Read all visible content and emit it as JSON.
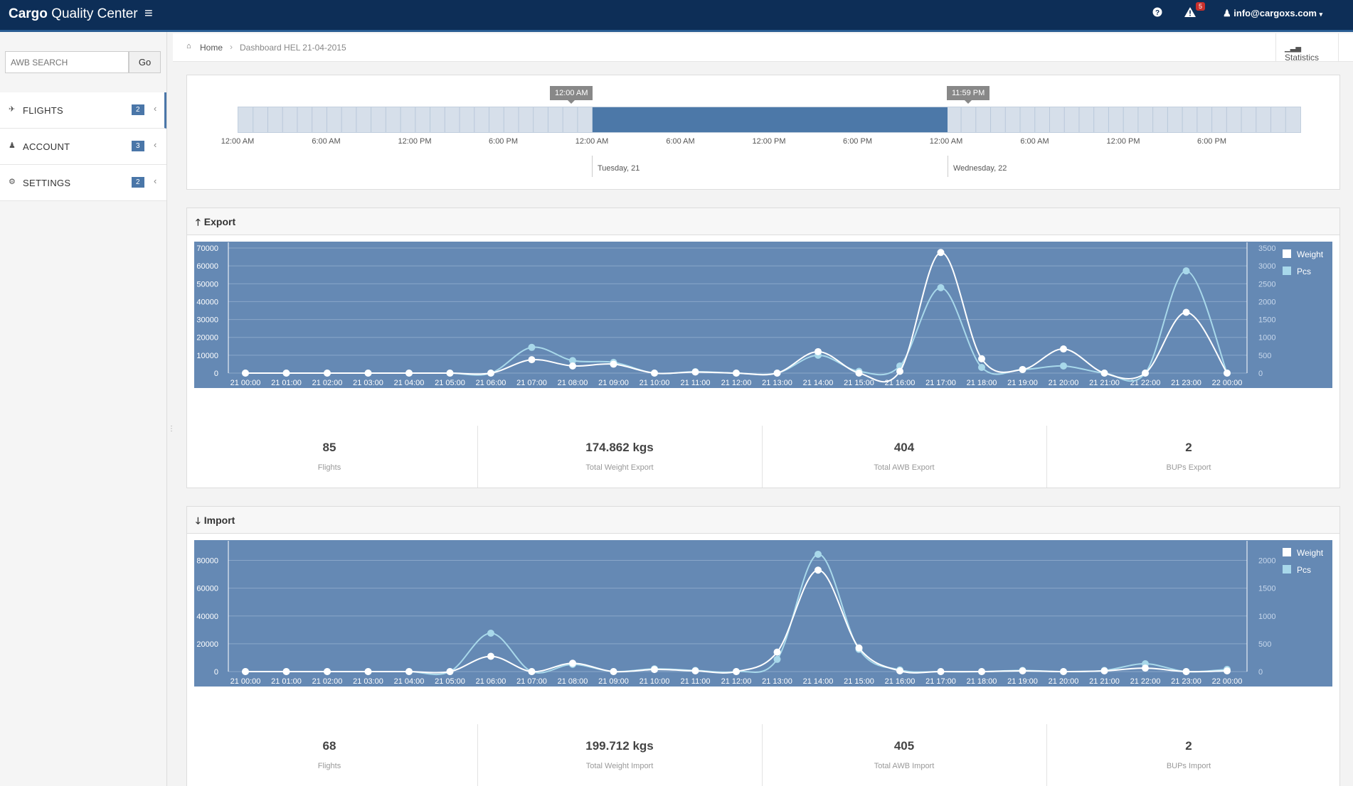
{
  "topbar": {
    "brand_bold": "Cargo",
    "brand_rest": "Quality Center",
    "menu_icon": "hamburger-icon",
    "help_icon": "question-circle-icon",
    "alert_icon": "warning-triangle-icon",
    "alert_count": "5",
    "user_icon": "user-icon",
    "user_email": "info@cargoxs.com"
  },
  "sidebar": {
    "search_placeholder": "AWB SEARCH",
    "search_button": "Go",
    "items": [
      {
        "label": "FLIGHTS",
        "count": "2",
        "icon": "plane-icon"
      },
      {
        "label": "ACCOUNT",
        "count": "3",
        "icon": "user-icon"
      },
      {
        "label": "SETTINGS",
        "count": "2",
        "icon": "gear-icon"
      }
    ]
  },
  "breadcrumb": {
    "home": "Home",
    "current": "Dashboard HEL 21-04-2015",
    "stats_button": "Statistics"
  },
  "timeline": {
    "start_label": "12:00 AM",
    "end_label": "11:59 PM",
    "ticks": [
      "12:00 AM",
      "6:00 AM",
      "12:00 PM",
      "6:00 PM",
      "12:00 AM",
      "6:00 AM",
      "12:00 PM",
      "6:00 PM",
      "12:00 AM",
      "6:00 AM",
      "12:00 PM",
      "6:00 PM"
    ],
    "day_1": "Tuesday, 21",
    "day_2": "Wednesday, 22"
  },
  "export": {
    "title": "Export",
    "stats": [
      {
        "value": "85",
        "label": "Flights"
      },
      {
        "value": "174.862 kgs",
        "label": "Total Weight Export"
      },
      {
        "value": "404",
        "label": "Total AWB Export"
      },
      {
        "value": "2",
        "label": "BUPs Export"
      }
    ]
  },
  "import": {
    "title": "Import",
    "stats": [
      {
        "value": "68",
        "label": "Flights"
      },
      {
        "value": "199.712 kgs",
        "label": "Total Weight Import"
      },
      {
        "value": "405",
        "label": "Total AWB Import"
      },
      {
        "value": "2",
        "label": "BUPs Import"
      }
    ]
  },
  "colors": {
    "chart_bg": "#6589b4",
    "weight": "#ffffff",
    "pcs": "#a8d8ea",
    "topbar": "#0d2e57",
    "accent": "#4a76a8"
  },
  "chart_data": [
    {
      "type": "line",
      "categories": [
        "21 00:00",
        "21 01:00",
        "21 02:00",
        "21 03:00",
        "21 04:00",
        "21 05:00",
        "21 06:00",
        "21 07:00",
        "21 08:00",
        "21 09:00",
        "21 10:00",
        "21 11:00",
        "21 12:00",
        "21 13:00",
        "21 14:00",
        "21 15:00",
        "21 16:00",
        "21 17:00",
        "21 18:00",
        "21 19:00",
        "21 20:00",
        "21 21:00",
        "21 22:00",
        "21 23:00",
        "22 00:00"
      ],
      "series": [
        {
          "name": "Weight",
          "axis": "left",
          "values": [
            0,
            0,
            0,
            0,
            0,
            0,
            0,
            7500,
            4000,
            5000,
            0,
            600,
            0,
            0,
            12000,
            0,
            1000,
            67500,
            8000,
            2000,
            13500,
            0,
            0,
            34000,
            0
          ]
        },
        {
          "name": "Pcs",
          "axis": "right",
          "values": [
            0,
            0,
            0,
            0,
            0,
            0,
            0,
            720,
            350,
            300,
            0,
            40,
            0,
            0,
            500,
            50,
            200,
            2390,
            160,
            100,
            200,
            0,
            0,
            2860,
            0
          ]
        }
      ],
      "ylim_left": [
        0,
        70000
      ],
      "yticks_left": [
        0,
        10000,
        20000,
        30000,
        40000,
        50000,
        60000,
        70000
      ],
      "ylim_right": [
        0,
        3500
      ],
      "yticks_right": [
        0,
        500,
        1000,
        1500,
        2000,
        2500,
        3000,
        3500
      ],
      "legend": [
        "Weight",
        "Pcs"
      ],
      "legend_position": "top-right",
      "grid": true
    },
    {
      "type": "line",
      "categories": [
        "21 00:00",
        "21 01:00",
        "21 02:00",
        "21 03:00",
        "21 04:00",
        "21 05:00",
        "21 06:00",
        "21 07:00",
        "21 08:00",
        "21 09:00",
        "21 10:00",
        "21 11:00",
        "21 12:00",
        "21 13:00",
        "21 14:00",
        "21 15:00",
        "21 16:00",
        "21 17:00",
        "21 18:00",
        "21 19:00",
        "21 20:00",
        "21 21:00",
        "21 22:00",
        "21 23:00",
        "22 00:00"
      ],
      "series": [
        {
          "name": "Weight",
          "axis": "left",
          "values": [
            0,
            0,
            0,
            0,
            0,
            0,
            11000,
            0,
            6000,
            0,
            1500,
            500,
            0,
            14000,
            73000,
            17000,
            500,
            0,
            0,
            500,
            0,
            500,
            2500,
            0,
            500
          ]
        },
        {
          "name": "Pcs",
          "axis": "right",
          "values": [
            0,
            0,
            0,
            0,
            0,
            0,
            690,
            0,
            130,
            0,
            50,
            20,
            0,
            220,
            2110,
            400,
            30,
            0,
            0,
            20,
            0,
            20,
            140,
            0,
            40
          ]
        }
      ],
      "ylim_left": [
        0,
        90000
      ],
      "yticks_left": [
        0,
        20000,
        40000,
        60000,
        80000
      ],
      "ylim_right": [
        0,
        2250
      ],
      "yticks_right": [
        0,
        500,
        1000,
        1500,
        2000
      ],
      "legend": [
        "Weight",
        "Pcs"
      ],
      "legend_position": "top-right",
      "grid": true
    }
  ]
}
